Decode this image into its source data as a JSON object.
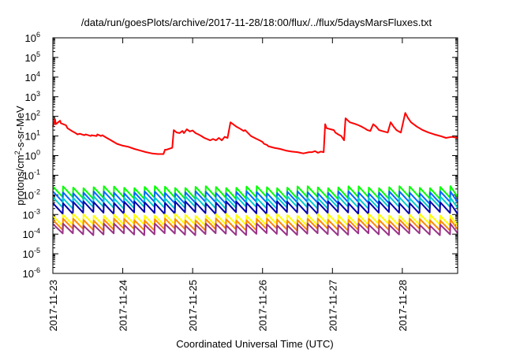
{
  "chart_data": {
    "type": "line",
    "title": "/data/run/goesPlots/archive/2017-11-28/18:00/flux/../flux/5daysMarsFluxes.txt",
    "xlabel": "Coordinated Universal Time (UTC)",
    "ylabel": "protons/cm²-s-sr-MeV",
    "y_scale": "log",
    "ylim": [
      1e-06,
      1000000.0
    ],
    "y_ticks": [
      {
        "base": "10",
        "exp": "-6",
        "value": 1e-06
      },
      {
        "base": "10",
        "exp": "-5",
        "value": 1e-05
      },
      {
        "base": "10",
        "exp": "-4",
        "value": 0.0001
      },
      {
        "base": "10",
        "exp": "-3",
        "value": 0.001
      },
      {
        "base": "10",
        "exp": "-2",
        "value": 0.01
      },
      {
        "base": "10",
        "exp": "-1",
        "value": 0.1
      },
      {
        "base": "10",
        "exp": "0",
        "value": 1
      },
      {
        "base": "10",
        "exp": "1",
        "value": 10
      },
      {
        "base": "10",
        "exp": "2",
        "value": 100
      },
      {
        "base": "10",
        "exp": "3",
        "value": 1000
      },
      {
        "base": "10",
        "exp": "4",
        "value": 10000
      },
      {
        "base": "10",
        "exp": "5",
        "value": 100000
      },
      {
        "base": "10",
        "exp": "6",
        "value": 1000000
      }
    ],
    "xlim": [
      "2017-11-23T00:00",
      "2017-11-28T19:00"
    ],
    "x_ticks": [
      "2017-11-23",
      "2017-11-24",
      "2017-11-25",
      "2017-11-26",
      "2017-11-27",
      "2017-11-28"
    ],
    "grid": false,
    "legend": "none",
    "series": [
      {
        "color": "#ff0000",
        "x": [
          "2017-11-23T00:00",
          "2017-11-23T00:45",
          "2017-11-23T01:00",
          "2017-11-23T02:30",
          "2017-11-23T02:45",
          "2017-11-23T04:30",
          "2017-11-23T05:00",
          "2017-11-23T06:30",
          "2017-11-23T07:30",
          "2017-11-23T08:30",
          "2017-11-23T09:15",
          "2017-11-23T10:45",
          "2017-11-23T11:15",
          "2017-11-23T13:00",
          "2017-11-23T13:15",
          "2017-11-23T15:00",
          "2017-11-23T15:15",
          "2017-11-23T16:30",
          "2017-11-23T17:00",
          "2017-11-23T18:30",
          "2017-11-23T20:00",
          "2017-11-23T22:00",
          "2017-11-24T00:00",
          "2017-11-24T02:00",
          "2017-11-24T04:00",
          "2017-11-24T06:00",
          "2017-11-24T08:00",
          "2017-11-24T10:00",
          "2017-11-24T12:00",
          "2017-11-24T14:00",
          "2017-11-24T14:30",
          "2017-11-24T15:00",
          "2017-11-24T17:00",
          "2017-11-24T17:30",
          "2017-11-24T18:30",
          "2017-11-24T19:30",
          "2017-11-24T20:30",
          "2017-11-24T21:00",
          "2017-11-24T22:00",
          "2017-11-24T23:00",
          "2017-11-25T00:00",
          "2017-11-25T01:00",
          "2017-11-25T02:00",
          "2017-11-25T03:00",
          "2017-11-25T04:00",
          "2017-11-25T06:00",
          "2017-11-25T07:00",
          "2017-11-25T08:00",
          "2017-11-25T09:00",
          "2017-11-25T10:00",
          "2017-11-25T11:00",
          "2017-11-25T12:00",
          "2017-11-25T13:00",
          "2017-11-25T15:00",
          "2017-11-25T16:00",
          "2017-11-25T17:30",
          "2017-11-25T18:00",
          "2017-11-25T20:00",
          "2017-11-25T22:00",
          "2017-11-25T23:00",
          "2017-11-26T00:00",
          "2017-11-26T00:30",
          "2017-11-26T01:30",
          "2017-11-26T02:00",
          "2017-11-26T04:00",
          "2017-11-26T06:00",
          "2017-11-26T08:00",
          "2017-11-26T10:00",
          "2017-11-26T12:00",
          "2017-11-26T14:00",
          "2017-11-26T16:00",
          "2017-11-26T17:00",
          "2017-11-26T18:00",
          "2017-11-26T19:00",
          "2017-11-26T20:00",
          "2017-11-26T21:00",
          "2017-11-26T21:30",
          "2017-11-26T22:00",
          "2017-11-27T00:30",
          "2017-11-27T01:00",
          "2017-11-27T02:00",
          "2017-11-27T03:00",
          "2017-11-27T04:00",
          "2017-11-27T04:30",
          "2017-11-27T06:00",
          "2017-11-27T08:00",
          "2017-11-27T09:00",
          "2017-11-27T10:00",
          "2017-11-27T11:00",
          "2017-11-27T12:00",
          "2017-11-27T13:00",
          "2017-11-27T14:00",
          "2017-11-27T15:00",
          "2017-11-27T16:00",
          "2017-11-27T17:00",
          "2017-11-27T19:00",
          "2017-11-27T20:00",
          "2017-11-27T21:00",
          "2017-11-27T22:00",
          "2017-11-27T22:30",
          "2017-11-27T23:30",
          "2017-11-28T01:00",
          "2017-11-28T02:00",
          "2017-11-28T03:00",
          "2017-11-28T05:00",
          "2017-11-28T07:00",
          "2017-11-28T09:00",
          "2017-11-28T11:00",
          "2017-11-28T13:00",
          "2017-11-28T15:00",
          "2017-11-28T17:00",
          "2017-11-28T19:00"
        ],
        "values": [
          30,
          70,
          40,
          60,
          45,
          35,
          25,
          18,
          15,
          12,
          13,
          11,
          12,
          10,
          11,
          10,
          12,
          10,
          11,
          8,
          6,
          4,
          3.2,
          2.8,
          2.2,
          1.8,
          1.5,
          1.3,
          1.2,
          1.2,
          2,
          2,
          2.5,
          20,
          15,
          14,
          18,
          14,
          22,
          17,
          19,
          14,
          12,
          10,
          8,
          6,
          7,
          6,
          8,
          6,
          9,
          8,
          50,
          30,
          25,
          18,
          20,
          10,
          7,
          6,
          5,
          4,
          3.5,
          3,
          2.5,
          2.2,
          1.8,
          1.6,
          1.5,
          1.3,
          1.5,
          1.5,
          1.7,
          1.4,
          1.6,
          1.5,
          40,
          25,
          20,
          15,
          12,
          10,
          6,
          80,
          50,
          40,
          35,
          30,
          25,
          20,
          18,
          40,
          30,
          20,
          18,
          15,
          50,
          30,
          20,
          18,
          15,
          150,
          80,
          50,
          30,
          20,
          15,
          12,
          10,
          8,
          9,
          8
        ]
      },
      {
        "color": "#00ff00",
        "base": 0.013,
        "swing": 0.012
      },
      {
        "color": "#0066ff",
        "base": 0.0072,
        "swing": 0.0065
      },
      {
        "color": "#00cccc",
        "base": 0.004,
        "swing": 0.0036
      },
      {
        "color": "#0000aa",
        "base": 0.0022,
        "swing": 0.002
      },
      {
        "color": "#ffff00",
        "base": 0.00052,
        "swing": 0.00045
      },
      {
        "color": "#ff8800",
        "base": 0.0003,
        "swing": 0.00026
      },
      {
        "color": "#993388",
        "base": 0.00017,
        "swing": 0.00014
      }
    ]
  }
}
